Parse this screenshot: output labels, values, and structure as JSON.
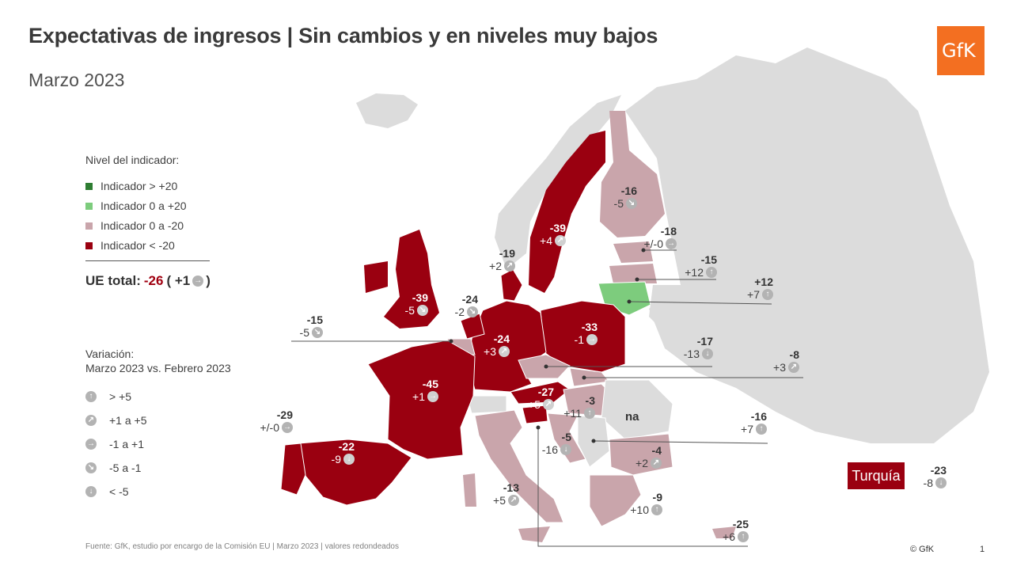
{
  "header": {
    "title": "Expectativas de ingresos | Sin cambios y en niveles muy bajos",
    "subtitle": "Marzo 2023",
    "logo_text": "GfK"
  },
  "colors": {
    "strong_positive": "#2e7d32",
    "positive": "#7dcc7d",
    "slight_negative": "#c9a5ab",
    "strong_negative": "#9a0010",
    "no_data": "#dcdcdc",
    "arrow_badge": "#b3b3b3"
  },
  "legend": {
    "title": "Nivel del indicador:",
    "items": [
      {
        "label": "Indicador > +20",
        "color": "#2e7d32"
      },
      {
        "label": "Indicador 0 a +20",
        "color": "#7dcc7d"
      },
      {
        "label": "Indicador 0 a -20",
        "color": "#c9a5ab"
      },
      {
        "label": "Indicador < -20",
        "color": "#9a0010"
      }
    ]
  },
  "eu_total": {
    "label": "UE total:",
    "value": "-26",
    "open": "( +1",
    "close": ")",
    "arrow": "right-arrow-icon"
  },
  "variation": {
    "title_line1": "Variación:",
    "title_line2": "Marzo 2023 vs. Febrero 2023",
    "items": [
      {
        "label": "> +5",
        "icon": "up-arrow-icon"
      },
      {
        "label": "+1 a +5",
        "icon": "up-right-arrow-icon"
      },
      {
        "label": "-1 a +1",
        "icon": "right-arrow-icon"
      },
      {
        "label": "-5 a -1",
        "icon": "down-right-arrow-icon"
      },
      {
        "label": "< -5",
        "icon": "down-arrow-icon"
      }
    ]
  },
  "countries": [
    {
      "value": "-16",
      "change": "-5",
      "arrow": "down-right-arrow-icon"
    },
    {
      "value": "-39",
      "change": "+4",
      "arrow": "up-right-arrow-icon"
    },
    {
      "value": "-19",
      "change": "+2",
      "arrow": "up-right-arrow-icon"
    },
    {
      "value": "-18",
      "change": "+/-0",
      "arrow": "right-arrow-icon"
    },
    {
      "value": "-15",
      "change": "+12",
      "arrow": "up-arrow-icon"
    },
    {
      "value": "+12",
      "change": "+7",
      "arrow": "up-arrow-icon"
    },
    {
      "value": "-39",
      "change": "-5",
      "arrow": "down-right-arrow-icon"
    },
    {
      "value": "-24",
      "change": "-2",
      "arrow": "down-right-arrow-icon"
    },
    {
      "value": "-15",
      "change": "-5",
      "arrow": "down-right-arrow-icon"
    },
    {
      "value": "-24",
      "change": "+3",
      "arrow": "up-right-arrow-icon"
    },
    {
      "value": "-33",
      "change": "-1",
      "arrow": "right-arrow-icon"
    },
    {
      "value": "-17",
      "change": "-13",
      "arrow": "down-arrow-icon"
    },
    {
      "value": "-8",
      "change": "+3",
      "arrow": "up-right-arrow-icon"
    },
    {
      "value": "-45",
      "change": "+1",
      "arrow": "right-arrow-icon"
    },
    {
      "value": "-27",
      "change": "+5",
      "arrow": "up-right-arrow-icon"
    },
    {
      "value": "-3",
      "change": "+11",
      "arrow": "up-arrow-icon"
    },
    {
      "value": "-29",
      "change": "+/-0",
      "arrow": "right-arrow-icon"
    },
    {
      "value": "-22",
      "change": "-9",
      "arrow": "down-arrow-icon"
    },
    {
      "value": "-16",
      "change": "+7",
      "arrow": "up-arrow-icon"
    },
    {
      "value": "-5",
      "change": "-16",
      "arrow": "down-arrow-icon"
    },
    {
      "value": "-4",
      "change": "+2",
      "arrow": "up-right-arrow-icon"
    },
    {
      "value": "-13",
      "change": "+5",
      "arrow": "up-right-arrow-icon"
    },
    {
      "value": "-9",
      "change": "+10",
      "arrow": "up-arrow-icon"
    },
    {
      "value": "-25",
      "change": "+6",
      "arrow": "up-arrow-icon"
    },
    {
      "value": "-23",
      "change": "-8",
      "arrow": "down-arrow-icon"
    }
  ],
  "na_label": "na",
  "turkey_label": "Turquía",
  "footer": {
    "source": "Fuente: GfK, estudio por encargo de la Comisión EU | Marzo 2023 | valores redondeados",
    "copyright": "© GfK",
    "page": "1"
  }
}
